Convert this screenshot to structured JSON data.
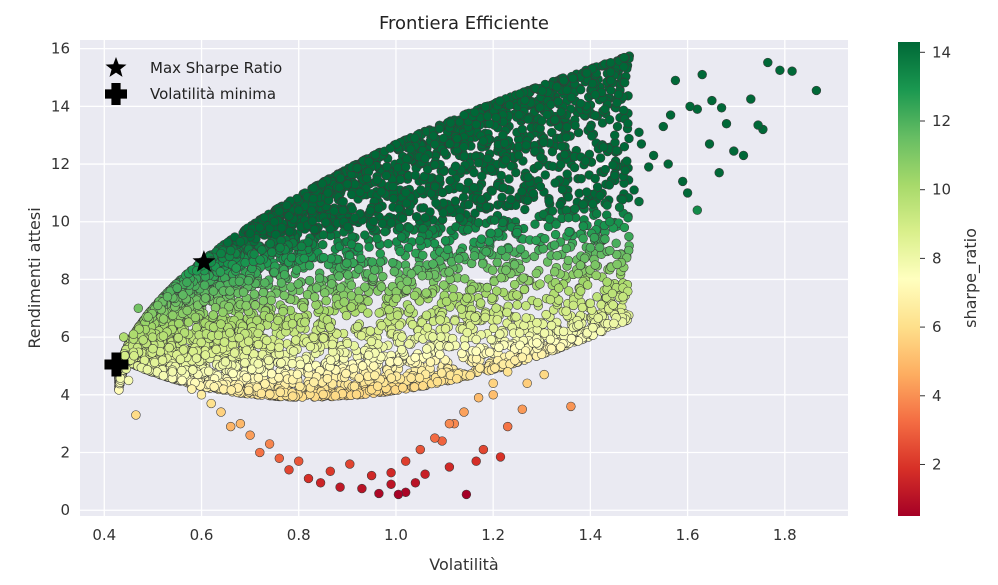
{
  "chart_data": {
    "type": "scatter",
    "title": "Frontiera Efficiente",
    "xlabel": "Volatilità",
    "ylabel": "Rendimenti attesi",
    "xlim": [
      0.35,
      1.93
    ],
    "ylim": [
      -0.2,
      16.3
    ],
    "x_ticks": [
      "0.4",
      "0.6",
      "0.8",
      "1.0",
      "1.2",
      "1.4",
      "1.6",
      "1.8"
    ],
    "y_ticks": [
      "0",
      "2",
      "4",
      "6",
      "8",
      "10",
      "12",
      "14",
      "16"
    ],
    "grid": true,
    "background": "#eaeaf2",
    "legend_position": "top-left",
    "colorbar": {
      "label": "sharpe_ratio",
      "range": [
        0.5,
        14.3
      ],
      "ticks": [
        "2",
        "4",
        "6",
        "8",
        "10",
        "12",
        "14"
      ],
      "colormap": "RdYlGn"
    },
    "markers": [
      {
        "name": "Max Sharpe Ratio",
        "symbol": "star",
        "x": 0.605,
        "y": 8.6,
        "color": "#000000"
      },
      {
        "name": "Volatilità minima",
        "symbol": "plus",
        "x": 0.425,
        "y": 5.05,
        "color": "#000000"
      }
    ],
    "series": [
      {
        "points": [
          [
            1.865,
            14.55
          ],
          [
            1.815,
            15.22
          ],
          [
            1.79,
            15.25
          ],
          [
            1.765,
            15.52
          ],
          [
            1.755,
            13.2
          ],
          [
            1.745,
            13.35
          ],
          [
            1.73,
            14.25
          ],
          [
            1.715,
            12.3
          ],
          [
            1.695,
            12.45
          ],
          [
            1.68,
            13.4
          ],
          [
            1.67,
            13.95
          ],
          [
            1.665,
            11.7
          ],
          [
            1.65,
            14.2
          ],
          [
            1.645,
            12.7
          ],
          [
            1.63,
            15.1
          ],
          [
            1.62,
            13.9
          ],
          [
            1.605,
            14.0
          ],
          [
            1.59,
            11.4
          ],
          [
            1.575,
            14.9
          ],
          [
            1.565,
            13.7
          ],
          [
            1.55,
            13.3
          ],
          [
            1.53,
            12.3
          ],
          [
            1.52,
            11.9
          ],
          [
            1.505,
            12.7
          ],
          [
            1.49,
            11.1
          ],
          [
            1.475,
            12.1
          ],
          [
            1.46,
            10.5
          ],
          [
            1.45,
            11.6
          ],
          [
            1.44,
            10.0
          ],
          [
            1.43,
            9.4
          ],
          [
            1.42,
            10.9
          ],
          [
            1.41,
            11.5
          ],
          [
            1.4,
            9.1
          ],
          [
            1.385,
            10.6
          ],
          [
            1.375,
            8.2
          ],
          [
            1.365,
            7.1
          ],
          [
            1.36,
            3.6
          ],
          [
            1.345,
            6.2
          ],
          [
            1.335,
            7.7
          ],
          [
            1.32,
            5.6
          ],
          [
            1.305,
            4.7
          ],
          [
            1.29,
            6.5
          ],
          [
            1.27,
            4.4
          ],
          [
            1.26,
            3.5
          ],
          [
            1.245,
            5.2
          ],
          [
            1.23,
            2.9
          ],
          [
            1.215,
            1.85
          ],
          [
            1.2,
            4.0
          ],
          [
            1.18,
            2.1
          ],
          [
            1.165,
            1.7
          ],
          [
            1.145,
            0.55
          ],
          [
            1.12,
            3.0
          ],
          [
            1.11,
            1.5
          ],
          [
            1.095,
            2.4
          ],
          [
            1.06,
            1.25
          ],
          [
            1.04,
            0.95
          ],
          [
            1.02,
            0.62
          ],
          [
            1.005,
            0.55
          ],
          [
            0.99,
            0.9
          ],
          [
            0.965,
            0.58
          ],
          [
            0.95,
            1.2
          ],
          [
            0.93,
            0.75
          ],
          [
            0.905,
            1.6
          ],
          [
            0.885,
            0.8
          ],
          [
            0.865,
            1.35
          ],
          [
            0.845,
            0.95
          ],
          [
            0.82,
            1.1
          ],
          [
            0.8,
            1.7
          ],
          [
            0.78,
            1.4
          ],
          [
            0.76,
            1.8
          ],
          [
            0.74,
            2.3
          ],
          [
            0.72,
            2.0
          ],
          [
            0.7,
            2.6
          ],
          [
            0.68,
            3.0
          ],
          [
            0.66,
            2.9
          ],
          [
            0.64,
            3.4
          ],
          [
            0.62,
            3.7
          ],
          [
            0.6,
            4.0
          ],
          [
            0.58,
            4.2
          ],
          [
            0.56,
            4.5
          ],
          [
            0.54,
            4.8
          ],
          [
            0.52,
            5.2
          ],
          [
            0.5,
            5.6
          ],
          [
            0.48,
            5.9
          ],
          [
            0.465,
            3.3
          ],
          [
            0.46,
            6.1
          ],
          [
            0.45,
            4.5
          ],
          [
            0.445,
            4.9
          ],
          [
            0.44,
            6.0
          ],
          [
            0.47,
            7.0
          ],
          [
            0.49,
            6.7
          ],
          [
            0.51,
            7.1
          ],
          [
            0.53,
            7.4
          ],
          [
            0.55,
            7.7
          ],
          [
            0.57,
            7.9
          ],
          [
            0.59,
            8.3
          ],
          [
            0.62,
            8.6
          ],
          [
            0.64,
            8.9
          ],
          [
            0.66,
            9.0
          ],
          [
            0.68,
            9.3
          ],
          [
            0.7,
            9.6
          ],
          [
            0.72,
            9.8
          ],
          [
            0.75,
            10.0
          ],
          [
            0.78,
            10.2
          ],
          [
            0.8,
            10.4
          ],
          [
            0.83,
            10.8
          ],
          [
            0.86,
            11.0
          ],
          [
            0.9,
            11.3
          ],
          [
            0.94,
            11.5
          ],
          [
            0.98,
            11.6
          ],
          [
            1.02,
            11.9
          ],
          [
            1.06,
            12.2
          ],
          [
            1.1,
            12.4
          ],
          [
            1.14,
            12.6
          ],
          [
            1.18,
            12.8
          ],
          [
            1.22,
            13.0
          ],
          [
            1.26,
            13.2
          ],
          [
            1.3,
            13.5
          ],
          [
            1.34,
            13.8
          ],
          [
            1.38,
            14.1
          ],
          [
            1.41,
            14.4
          ],
          [
            1.43,
            13.9
          ],
          [
            1.45,
            13.0
          ],
          [
            1.47,
            12.6
          ],
          [
            1.5,
            13.1
          ],
          [
            1.56,
            12.0
          ],
          [
            1.6,
            11.0
          ],
          [
            1.62,
            10.4
          ],
          [
            1.5,
            10.7
          ],
          [
            1.47,
            9.8
          ],
          [
            1.44,
            9.0
          ],
          [
            1.41,
            8.5
          ],
          [
            1.38,
            7.6
          ],
          [
            1.35,
            6.9
          ],
          [
            1.32,
            6.4
          ],
          [
            1.29,
            5.8
          ],
          [
            1.26,
            5.3
          ],
          [
            1.23,
            4.8
          ],
          [
            1.2,
            4.4
          ],
          [
            1.17,
            3.9
          ],
          [
            1.14,
            3.4
          ],
          [
            1.11,
            3.0
          ],
          [
            1.08,
            2.5
          ],
          [
            1.05,
            2.1
          ],
          [
            1.02,
            1.7
          ],
          [
            0.99,
            1.3
          ]
        ]
      }
    ]
  }
}
